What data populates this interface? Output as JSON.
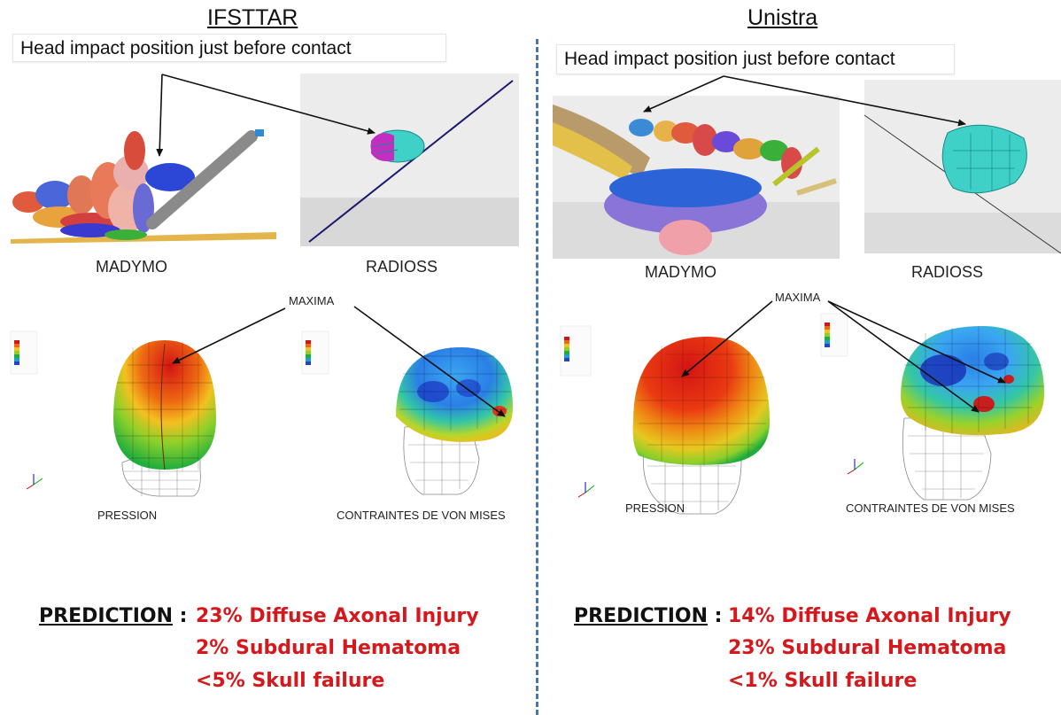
{
  "left": {
    "title": "IFSTTAR",
    "note": "Head impact position just before contact",
    "madymo": "MADYMO",
    "radioss": "RADIOSS",
    "maxima": "MAXIMA",
    "pression": "PRESSION",
    "von_mises": "CONTRAINTES DE VON MISES",
    "prediction_label": "PREDICTION",
    "predictions": [
      "23% Diffuse Axonal Injury",
      "2% Subdural Hematoma",
      "<5% Skull failure"
    ]
  },
  "right": {
    "title": "Unistra",
    "note": "Head impact position just before contact",
    "madymo": "MADYMO",
    "radioss": "RADIOSS",
    "maxima": "MAXIMA",
    "pression": "PRESSION",
    "von_mises": "CONTRAINTES DE VON MISES",
    "prediction_label": "PREDICTION",
    "predictions": [
      "14% Diffuse Axonal Injury",
      "23% Subdural Hematoma",
      "<1% Skull failure"
    ]
  },
  "colors": {
    "divider": "#4a74b4",
    "prediction_values": "#d4181c"
  }
}
